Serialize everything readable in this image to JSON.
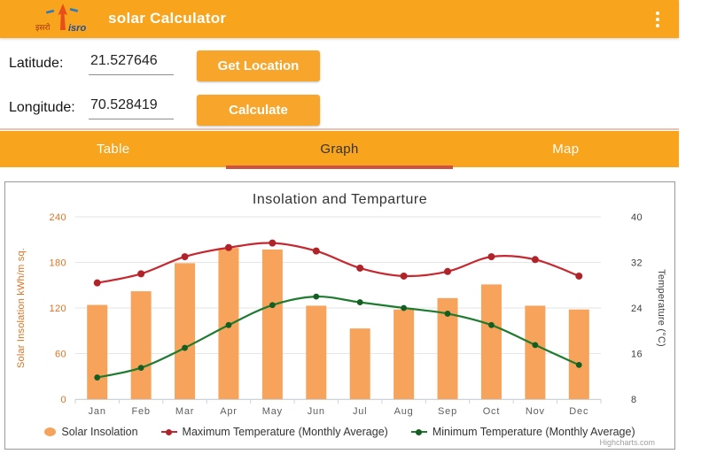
{
  "app": {
    "title": "solar Calculator",
    "logo": {
      "hindi_text": "इसरो",
      "latin_text": "isro"
    }
  },
  "form": {
    "latitude_label": "Latitude:",
    "latitude_value": "21.527646",
    "longitude_label": "Longitude:",
    "longitude_value": "70.528419",
    "get_location_label": "Get Location",
    "calculate_label": "Calculate"
  },
  "tabs": [
    {
      "label": "Table",
      "active": false
    },
    {
      "label": "Graph",
      "active": true
    },
    {
      "label": "Map",
      "active": false
    }
  ],
  "chart_data": {
    "type": "combo",
    "title": "Insolation and Temparture",
    "categories": [
      "Jan",
      "Feb",
      "Mar",
      "Apr",
      "May",
      "Jun",
      "Jul",
      "Aug",
      "Sep",
      "Oct",
      "Nov",
      "Dec"
    ],
    "series": [
      {
        "name": "Solar Insolation",
        "type": "bar",
        "axis": "left",
        "color": "#f7a35c",
        "values": [
          124,
          142,
          179,
          199,
          197,
          123,
          93,
          118,
          133,
          151,
          123,
          118
        ]
      },
      {
        "name": "Maximum Temperature (Monthly Average)",
        "type": "line",
        "axis": "right",
        "color": "#c5282f",
        "marker_color": "#b02329",
        "values": [
          28.4,
          30,
          33,
          34.6,
          35.4,
          34,
          31,
          29.6,
          30.4,
          33,
          32.5,
          29.6
        ]
      },
      {
        "name": "Minimum Temperature (Monthly Average)",
        "type": "line",
        "axis": "right",
        "color": "#1e7b2f",
        "marker_color": "#155e21",
        "values": [
          11.8,
          13.5,
          17,
          21,
          24.5,
          26,
          25,
          24,
          23,
          21,
          17.5,
          14
        ]
      }
    ],
    "left_axis": {
      "title": "Solar Insolation kWh/m sq.",
      "min": 0,
      "max": 240,
      "ticks": [
        0,
        60,
        120,
        180,
        240
      ],
      "color": "#e2711f"
    },
    "right_axis": {
      "title": "Temperature (°C)",
      "min": 8,
      "max": 40,
      "ticks": [
        8,
        16,
        24,
        32,
        40
      ],
      "color": "#404040"
    },
    "grid": true,
    "legend_position": "bottom",
    "credit": "Highcharts.com"
  },
  "colors": {
    "appbar": "#f8a41c",
    "button": "#f7a52b",
    "tab_indicator": "#cf5240",
    "bar_series": "#f7a35c",
    "max_temp_series": "#c5282f",
    "min_temp_series": "#1e7b2f",
    "left_axis_label": "#e2711f"
  }
}
